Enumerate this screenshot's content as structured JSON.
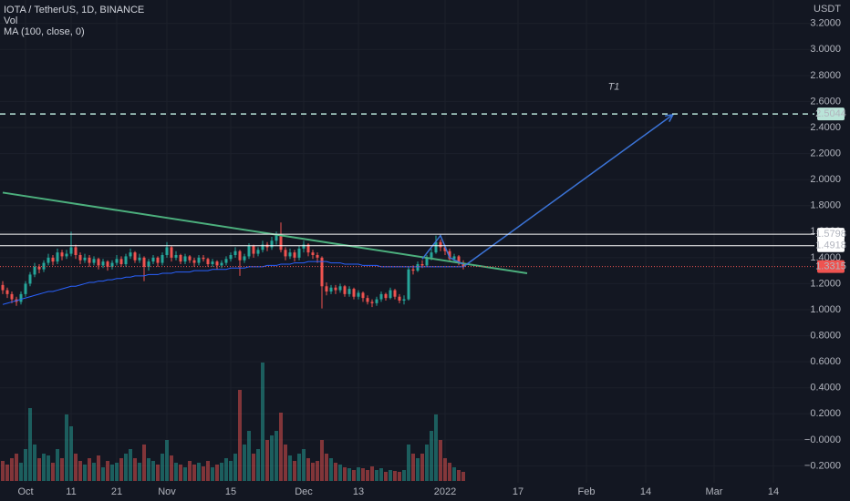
{
  "chart_data": {
    "type": "candlestick",
    "title": "IOTA / TetherUS, 1D, BINANCE",
    "volume_label": "Vol",
    "ma_label": "MA (100, close, 0)",
    "currency": "USDT",
    "up_color": "#26a69a",
    "down_color": "#ef5350",
    "ylim": [
      -0.33,
      3.38
    ],
    "xlim": [
      0,
      178
    ],
    "yticks": [
      {
        "value": 3.2,
        "label": "3.2000"
      },
      {
        "value": 3.0,
        "label": "3.0000"
      },
      {
        "value": 2.8,
        "label": "2.8000"
      },
      {
        "value": 2.6,
        "label": "2.6000"
      },
      {
        "value": 2.4,
        "label": "2.4000"
      },
      {
        "value": 2.2,
        "label": "2.2000"
      },
      {
        "value": 2.0,
        "label": "2.0000"
      },
      {
        "value": 1.8,
        "label": "1.8000"
      },
      {
        "value": 1.6,
        "label": "1.6000"
      },
      {
        "value": 1.4,
        "label": "1.4000"
      },
      {
        "value": 1.2,
        "label": "1.2000"
      },
      {
        "value": 1.0,
        "label": "1.0000"
      },
      {
        "value": 0.8,
        "label": "0.8000"
      },
      {
        "value": 0.6,
        "label": "0.6000"
      },
      {
        "value": 0.4,
        "label": "0.4000"
      },
      {
        "value": 0.2,
        "label": "0.2000"
      },
      {
        "value": 0,
        "label": "−0.0000"
      },
      {
        "value": -0.2,
        "label": "−0.2000"
      }
    ],
    "xticks": [
      {
        "value": 5,
        "label": "Oct"
      },
      {
        "value": 15,
        "label": "11"
      },
      {
        "value": 25,
        "label": "21"
      },
      {
        "value": 36,
        "label": "Nov"
      },
      {
        "value": 50,
        "label": "15"
      },
      {
        "value": 66,
        "label": "Dec"
      },
      {
        "value": 78,
        "label": "13"
      },
      {
        "value": 97,
        "label": "2022"
      },
      {
        "value": 113,
        "label": "17"
      },
      {
        "value": 128,
        "label": "Feb"
      },
      {
        "value": 141,
        "label": "14"
      },
      {
        "value": 156,
        "label": "Mar"
      },
      {
        "value": 169,
        "label": "14"
      }
    ],
    "grid": true,
    "open": [
      1.19,
      1.15,
      1.12,
      1.08,
      1.06,
      1.12,
      1.2,
      1.27,
      1.33,
      1.31,
      1.36,
      1.4,
      1.37,
      1.44,
      1.41,
      1.43,
      1.48,
      1.42,
      1.38,
      1.4,
      1.36,
      1.39,
      1.34,
      1.37,
      1.33,
      1.36,
      1.39,
      1.35,
      1.41,
      1.44,
      1.38,
      1.4,
      1.33,
      1.37,
      1.4,
      1.36,
      1.42,
      1.48,
      1.4,
      1.42,
      1.37,
      1.41,
      1.38,
      1.36,
      1.4,
      1.39,
      1.35,
      1.37,
      1.34,
      1.36,
      1.39,
      1.42,
      1.45,
      1.38,
      1.41,
      1.49,
      1.43,
      1.46,
      1.5,
      1.48,
      1.53,
      1.57,
      1.46,
      1.41,
      1.44,
      1.4,
      1.47,
      1.5,
      1.44,
      1.42,
      1.4,
      1.18,
      1.14,
      1.17,
      1.15,
      1.18,
      1.12,
      1.16,
      1.1,
      1.13,
      1.09,
      1.06,
      1.05,
      1.08,
      1.12,
      1.09,
      1.15,
      1.1,
      1.07,
      1.08,
      1.31,
      1.3,
      1.35,
      1.34,
      1.4,
      1.44,
      1.52,
      1.48,
      1.45,
      1.39,
      1.41,
      1.36
    ],
    "high": [
      1.22,
      1.17,
      1.14,
      1.1,
      1.14,
      1.22,
      1.29,
      1.36,
      1.35,
      1.38,
      1.43,
      1.42,
      1.47,
      1.46,
      1.46,
      1.6,
      1.5,
      1.44,
      1.43,
      1.42,
      1.41,
      1.4,
      1.39,
      1.38,
      1.38,
      1.42,
      1.41,
      1.43,
      1.47,
      1.45,
      1.43,
      1.41,
      1.39,
      1.42,
      1.41,
      1.44,
      1.52,
      1.49,
      1.45,
      1.43,
      1.43,
      1.42,
      1.4,
      1.42,
      1.42,
      1.4,
      1.39,
      1.38,
      1.38,
      1.41,
      1.44,
      1.48,
      1.46,
      1.43,
      1.51,
      1.5,
      1.48,
      1.53,
      1.52,
      1.56,
      1.6,
      1.67,
      1.48,
      1.47,
      1.46,
      1.49,
      1.53,
      1.51,
      1.46,
      1.44,
      1.41,
      1.21,
      1.19,
      1.19,
      1.2,
      1.19,
      1.18,
      1.17,
      1.15,
      1.14,
      1.11,
      1.08,
      1.1,
      1.14,
      1.13,
      1.17,
      1.16,
      1.12,
      1.11,
      1.33,
      1.34,
      1.37,
      1.38,
      1.42,
      1.47,
      1.57,
      1.54,
      1.5,
      1.47,
      1.43,
      1.42,
      1.38
    ],
    "low": [
      1.12,
      1.09,
      1.05,
      1.03,
      1.04,
      1.1,
      1.18,
      1.25,
      1.28,
      1.29,
      1.34,
      1.34,
      1.35,
      1.38,
      1.39,
      1.41,
      1.39,
      1.35,
      1.36,
      1.33,
      1.34,
      1.31,
      1.32,
      1.3,
      1.31,
      1.34,
      1.33,
      1.33,
      1.39,
      1.36,
      1.36,
      1.22,
      1.3,
      1.35,
      1.33,
      1.34,
      1.4,
      1.37,
      1.38,
      1.35,
      1.35,
      1.36,
      1.33,
      1.34,
      1.37,
      1.33,
      1.33,
      1.31,
      1.32,
      1.34,
      1.37,
      1.4,
      1.26,
      1.36,
      1.39,
      1.4,
      1.41,
      1.44,
      1.45,
      1.46,
      1.5,
      1.44,
      1.38,
      1.39,
      1.37,
      1.38,
      1.44,
      1.41,
      1.39,
      1.36,
      1.01,
      1.11,
      1.12,
      1.12,
      1.13,
      1.1,
      1.1,
      1.08,
      1.08,
      1.06,
      1.04,
      1.02,
      1.03,
      1.06,
      1.07,
      1.08,
      1.08,
      1.05,
      1.04,
      1.07,
      1.27,
      1.29,
      1.32,
      1.33,
      1.38,
      1.43,
      1.45,
      1.42,
      1.37,
      1.37,
      1.34,
      1.31
    ],
    "close": [
      1.15,
      1.12,
      1.08,
      1.06,
      1.12,
      1.2,
      1.27,
      1.33,
      1.31,
      1.36,
      1.4,
      1.37,
      1.44,
      1.41,
      1.43,
      1.48,
      1.42,
      1.38,
      1.4,
      1.36,
      1.39,
      1.34,
      1.37,
      1.33,
      1.36,
      1.39,
      1.35,
      1.41,
      1.44,
      1.38,
      1.4,
      1.33,
      1.37,
      1.4,
      1.36,
      1.42,
      1.48,
      1.4,
      1.42,
      1.37,
      1.41,
      1.38,
      1.36,
      1.4,
      1.39,
      1.35,
      1.37,
      1.34,
      1.36,
      1.39,
      1.42,
      1.45,
      1.38,
      1.41,
      1.49,
      1.43,
      1.46,
      1.5,
      1.48,
      1.53,
      1.57,
      1.46,
      1.41,
      1.44,
      1.4,
      1.47,
      1.5,
      1.44,
      1.42,
      1.4,
      1.18,
      1.14,
      1.17,
      1.15,
      1.18,
      1.12,
      1.16,
      1.1,
      1.13,
      1.09,
      1.06,
      1.05,
      1.08,
      1.12,
      1.09,
      1.15,
      1.1,
      1.07,
      1.08,
      1.31,
      1.3,
      1.35,
      1.34,
      1.4,
      1.44,
      1.52,
      1.48,
      1.45,
      1.39,
      1.41,
      1.36,
      1.3315
    ],
    "volume": [
      22,
      18,
      25,
      30,
      20,
      35,
      80,
      40,
      25,
      30,
      28,
      20,
      35,
      25,
      73,
      60,
      30,
      22,
      18,
      25,
      20,
      28,
      15,
      22,
      18,
      20,
      25,
      30,
      35,
      25,
      20,
      40,
      25,
      22,
      18,
      30,
      45,
      28,
      20,
      18,
      15,
      22,
      18,
      20,
      16,
      22,
      15,
      18,
      20,
      25,
      22,
      30,
      100,
      40,
      55,
      30,
      35,
      130,
      45,
      50,
      55,
      75,
      40,
      28,
      22,
      30,
      35,
      25,
      20,
      22,
      45,
      30,
      25,
      20,
      18,
      15,
      14,
      12,
      15,
      14,
      12,
      16,
      12,
      14,
      10,
      12,
      11,
      10,
      12,
      40,
      30,
      25,
      30,
      40,
      55,
      73,
      45,
      25,
      20,
      15,
      12,
      10
    ],
    "ma": {
      "color": "#2962ff",
      "values": [
        1.04,
        1.05,
        1.06,
        1.07,
        1.08,
        1.09,
        1.1,
        1.11,
        1.12,
        1.13,
        1.14,
        1.14,
        1.15,
        1.16,
        1.17,
        1.18,
        1.18,
        1.19,
        1.2,
        1.21,
        1.21,
        1.22,
        1.22,
        1.23,
        1.23,
        1.24,
        1.24,
        1.25,
        1.25,
        1.26,
        1.26,
        1.26,
        1.27,
        1.27,
        1.27,
        1.28,
        1.28,
        1.28,
        1.29,
        1.29,
        1.29,
        1.29,
        1.3,
        1.3,
        1.3,
        1.3,
        1.31,
        1.31,
        1.31,
        1.31,
        1.32,
        1.32,
        1.32,
        1.32,
        1.33,
        1.33,
        1.33,
        1.33,
        1.34,
        1.34,
        1.34,
        1.35,
        1.35,
        1.35,
        1.36,
        1.36,
        1.36,
        1.37,
        1.37,
        1.37,
        1.37,
        1.37,
        1.36,
        1.36,
        1.36,
        1.35,
        1.35,
        1.35,
        1.35,
        1.34,
        1.34,
        1.34,
        1.34,
        1.33,
        1.33,
        1.33,
        1.33,
        1.33,
        1.33,
        1.33,
        1.33,
        1.33,
        1.33,
        1.33,
        1.33,
        1.33,
        1.33,
        1.33,
        1.33,
        1.33,
        1.33,
        1.33
      ]
    },
    "levels": [
      {
        "value": 2.5044,
        "dashed": true,
        "color": "#b9e4d8",
        "tag_color": "#b9e4d8"
      },
      {
        "value": 1.5798,
        "dashed": false,
        "color": "#ffffff",
        "tag_color": "#ffffff"
      },
      {
        "value": 1.4918,
        "dashed": false,
        "color": "#ffffff",
        "tag_color": "#ffffff"
      }
    ],
    "trendline": {
      "color": "#4caf7d",
      "x": [
        0,
        115
      ],
      "y": [
        1.9,
        1.28
      ]
    },
    "arrow": {
      "color": "#3b73d6",
      "x": [
        101,
        147
      ],
      "y": [
        1.33,
        2.5
      ]
    },
    "pattern": {
      "color": "#3b73d6",
      "x": [
        92,
        96,
        98,
        101
      ],
      "y": [
        1.39,
        1.57,
        1.4,
        1.35
      ]
    },
    "note": {
      "text": "T1",
      "x": 134,
      "y": 2.71
    }
  }
}
